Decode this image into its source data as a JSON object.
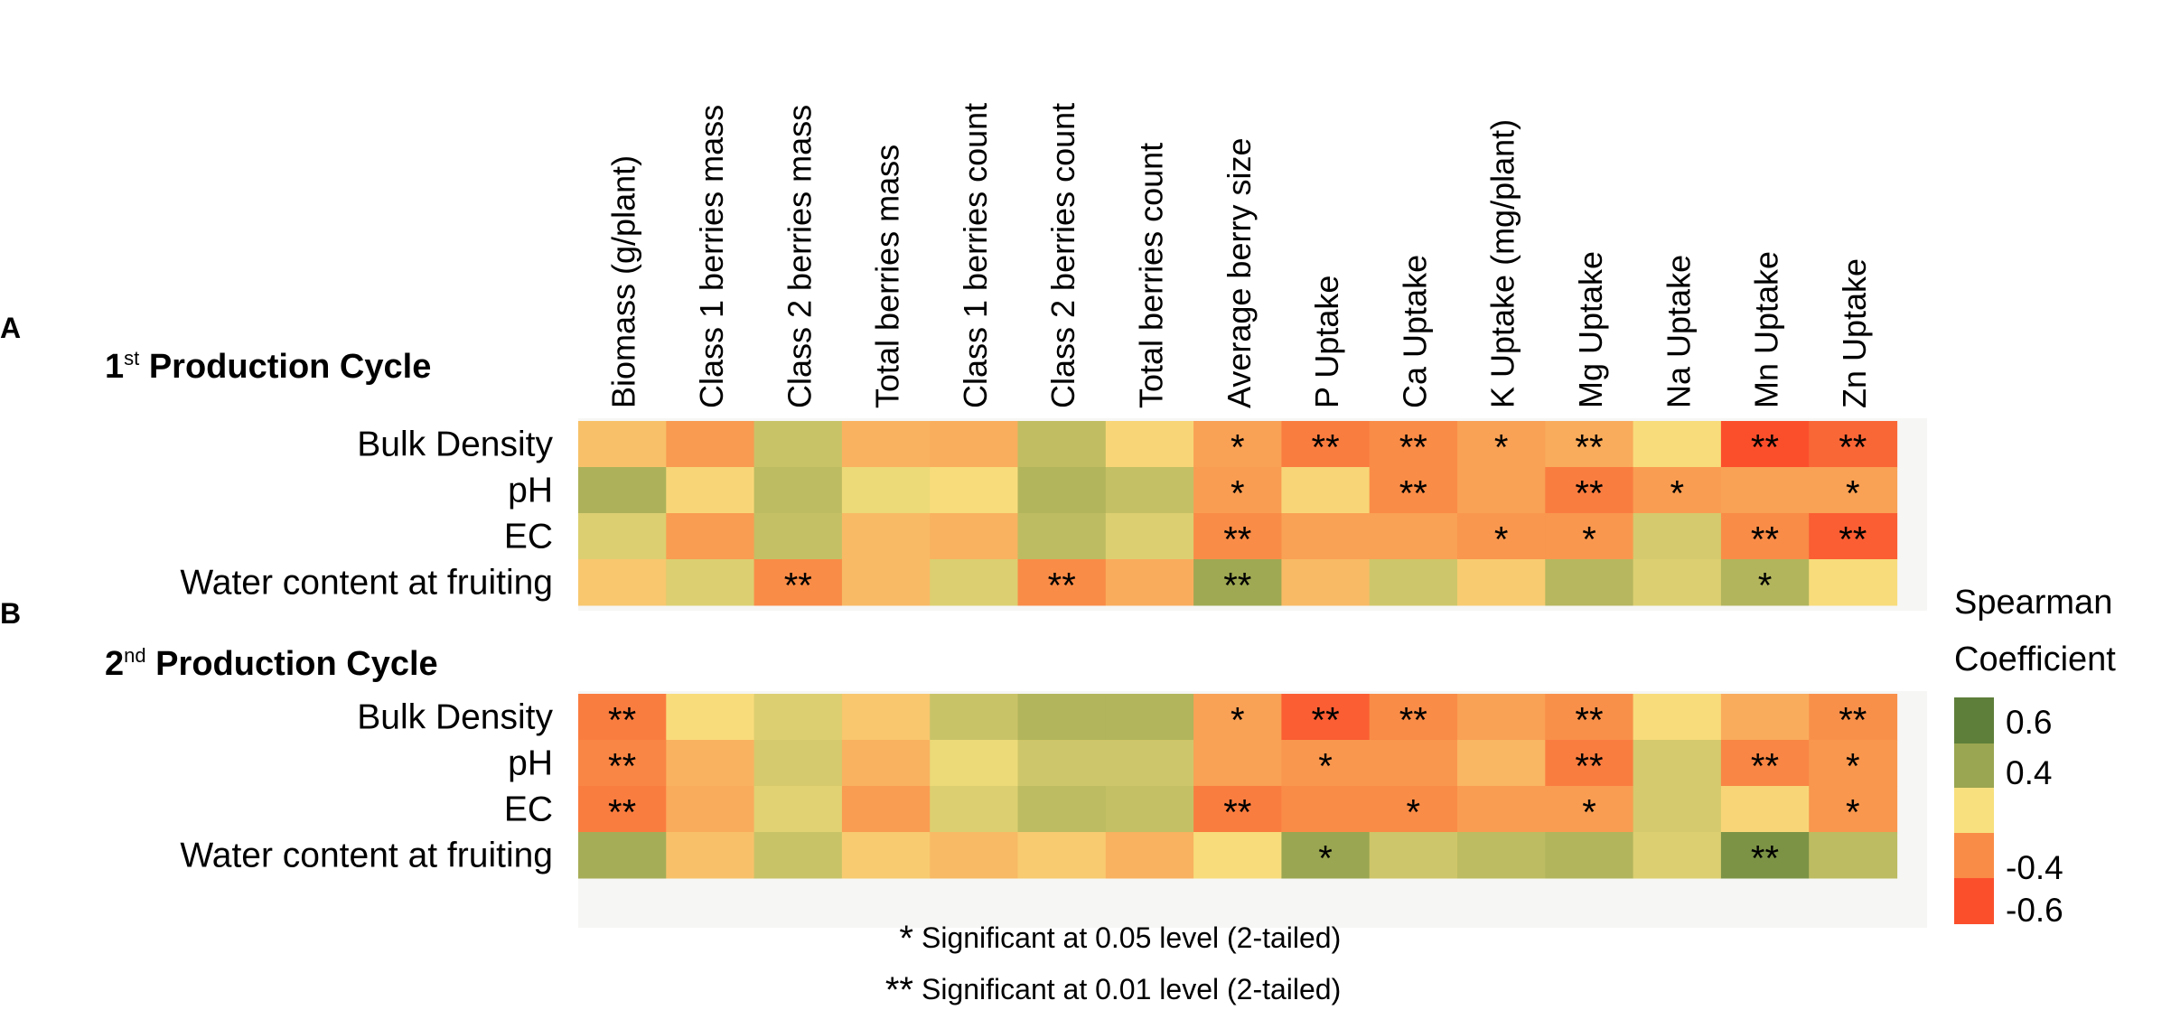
{
  "chart_data": {
    "type": "heatmap",
    "columns": [
      "Biomass (g/plant)",
      "Class 1 berries mass",
      "Class 2 berries mass",
      "Total berries mass",
      "Class 1 berries count",
      "Class 2 berries count",
      "Total berries count",
      "Average berry size",
      "P Uptake",
      "Ca Uptake",
      "K Uptake (mg/plant)",
      "Mg Uptake",
      "Na Uptake",
      "Mn Uptake",
      "Zn Uptake"
    ],
    "panels": [
      {
        "letter": "A",
        "title_prefix": "1",
        "title_sup": "st",
        "title_suffix": " Production Cycle",
        "rows": [
          "Bulk Density",
          "pH",
          "EC",
          "Water content at fruiting"
        ],
        "values": [
          [
            -0.15,
            -0.33,
            0.2,
            -0.22,
            -0.24,
            0.24,
            -0.05,
            -0.3,
            -0.45,
            -0.4,
            -0.3,
            -0.25,
            -0.02,
            -0.62,
            -0.52
          ],
          [
            0.32,
            -0.05,
            0.25,
            0.05,
            -0.02,
            0.3,
            0.22,
            -0.32,
            -0.05,
            -0.4,
            -0.3,
            -0.45,
            -0.32,
            -0.3,
            -0.3
          ],
          [
            0.12,
            -0.32,
            0.22,
            -0.18,
            -0.22,
            0.25,
            0.12,
            -0.4,
            -0.3,
            -0.3,
            -0.35,
            -0.35,
            0.15,
            -0.4,
            -0.55
          ],
          [
            -0.12,
            0.12,
            -0.4,
            -0.18,
            0.12,
            -0.4,
            -0.25,
            0.38,
            -0.18,
            0.18,
            -0.1,
            0.28,
            0.12,
            0.3,
            -0.02
          ]
        ],
        "significance": [
          [
            "",
            "",
            "",
            "",
            "",
            "",
            "",
            "*",
            "**",
            "**",
            "*",
            "**",
            "",
            "**",
            "**"
          ],
          [
            "",
            "",
            "",
            "",
            "",
            "",
            "",
            "*",
            "",
            "**",
            "",
            "**",
            "*",
            "",
            "*"
          ],
          [
            "",
            "",
            "",
            "",
            "",
            "",
            "",
            "**",
            "",
            "",
            "*",
            "*",
            "",
            "**",
            "**"
          ],
          [
            "",
            "",
            "**",
            "",
            "",
            "**",
            "",
            "**",
            "",
            "",
            "",
            "",
            "",
            "*",
            ""
          ]
        ]
      },
      {
        "letter": "B",
        "title_prefix": "2",
        "title_sup": "nd",
        "title_suffix": " Production Cycle",
        "rows": [
          "Bulk Density",
          "pH",
          "EC",
          "Water content at fruiting"
        ],
        "values": [
          [
            -0.45,
            -0.02,
            0.12,
            -0.12,
            0.2,
            0.3,
            0.3,
            -0.3,
            -0.55,
            -0.4,
            -0.3,
            -0.38,
            -0.02,
            -0.25,
            -0.38
          ],
          [
            -0.42,
            -0.22,
            0.15,
            -0.22,
            0.05,
            0.18,
            0.18,
            -0.3,
            -0.35,
            -0.35,
            -0.2,
            -0.45,
            0.15,
            -0.42,
            -0.35
          ],
          [
            -0.45,
            -0.25,
            0.1,
            -0.32,
            0.12,
            0.25,
            0.22,
            -0.45,
            -0.4,
            -0.4,
            -0.32,
            -0.32,
            0.15,
            -0.05,
            -0.35
          ],
          [
            0.35,
            -0.15,
            0.2,
            -0.1,
            -0.18,
            -0.1,
            -0.22,
            -0.02,
            0.4,
            0.18,
            0.25,
            0.3,
            0.12,
            0.5,
            0.25
          ]
        ],
        "significance": [
          [
            "**",
            "",
            "",
            "",
            "",
            "",
            "",
            "*",
            "**",
            "**",
            "",
            "**",
            "",
            "",
            "**"
          ],
          [
            "**",
            "",
            "",
            "",
            "",
            "",
            "",
            "",
            "*",
            "",
            "",
            "**",
            "",
            "**",
            "*"
          ],
          [
            "**",
            "",
            "",
            "",
            "",
            "",
            "",
            "**",
            "",
            "*",
            "",
            "*",
            "",
            "",
            "*"
          ],
          [
            "",
            "",
            "",
            "",
            "",
            "",
            "",
            "",
            "*",
            "",
            "",
            "",
            "",
            "**",
            ""
          ]
        ]
      }
    ],
    "legend": {
      "title_line1": "Spearman",
      "title_line2": "Coefficient",
      "stops": [
        {
          "value": 0.6,
          "label": "0.6",
          "color": "#5e7f3a"
        },
        {
          "value": 0.4,
          "label": "0.4",
          "color": "#9aa651"
        },
        {
          "value": 0.0,
          "label": "",
          "color": "#f8e07e"
        },
        {
          "value": -0.4,
          "label": "-0.4",
          "color": "#f98c47"
        },
        {
          "value": -0.6,
          "label": "-0.6",
          "color": "#fb4f2c"
        }
      ]
    },
    "footnotes": [
      {
        "symbol": "*",
        "text": "Significant at 0.05 level (2-tailed)"
      },
      {
        "symbol": "**",
        "text": "Significant at 0.01 level (2-tailed)"
      }
    ]
  }
}
